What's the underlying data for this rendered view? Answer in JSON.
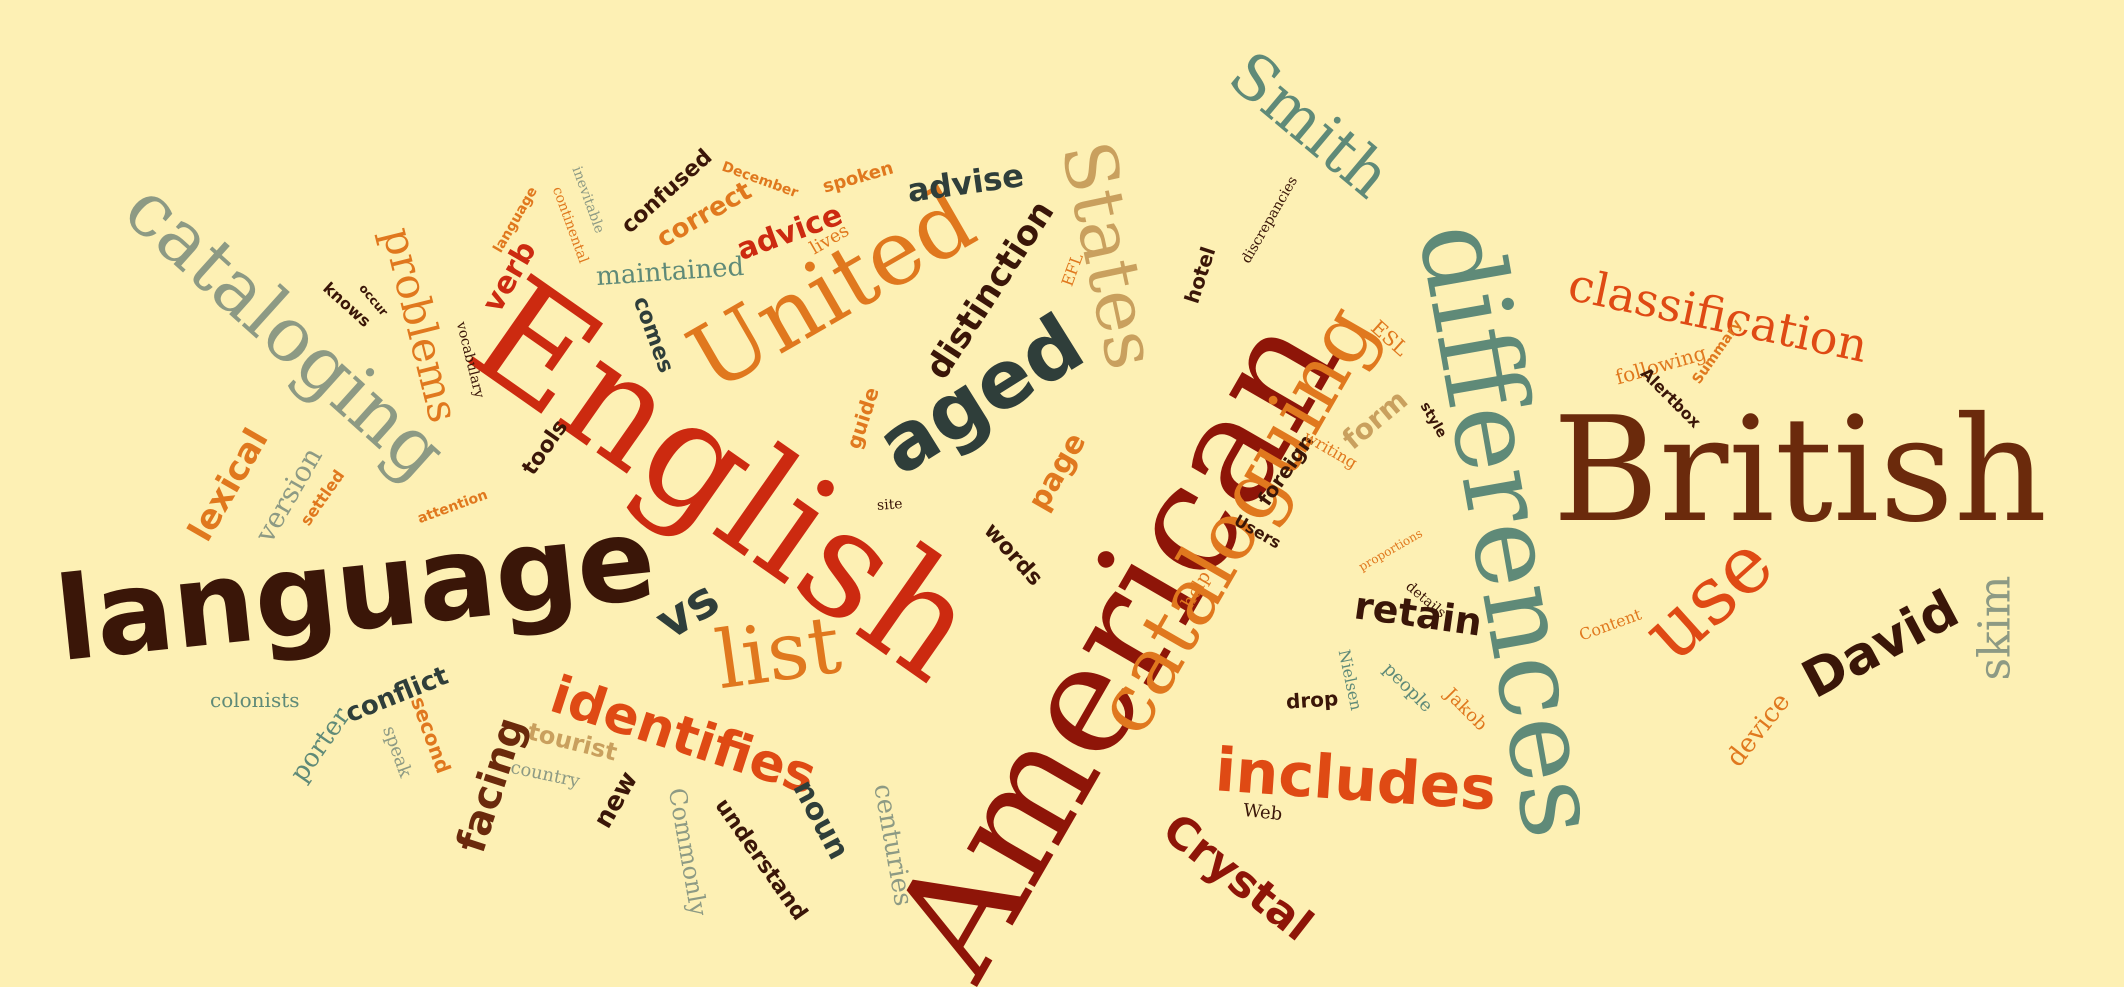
{
  "colors": {
    "background": "#fdf0b4",
    "dark_brown": "#3a1608",
    "brown": "#6b2a0c",
    "dark_red": "#8e1508",
    "red": "#cc2a10",
    "orange_red": "#df4a14",
    "orange": "#e0781e",
    "tan": "#c9a05e",
    "sage": "#8d9a84",
    "teal": "#5f8a78",
    "dark_slate": "#2f3e3a"
  },
  "words": [
    {
      "text": "American",
      "color": "dark_red",
      "style": "serif"
    },
    {
      "text": "English",
      "color": "red",
      "style": "serif"
    },
    {
      "text": "British",
      "color": "brown",
      "style": "serif"
    },
    {
      "text": "differences",
      "color": "teal",
      "style": "serif"
    },
    {
      "text": "language",
      "color": "dark_brown",
      "style": "sans"
    },
    {
      "text": "cataloging",
      "color": "sage",
      "style": "serif"
    },
    {
      "text": "cataloguing",
      "color": "orange",
      "style": "serif"
    },
    {
      "text": "United",
      "color": "orange",
      "style": "serif"
    },
    {
      "text": "States",
      "color": "tan",
      "style": "serif"
    },
    {
      "text": "aged",
      "color": "dark_slate",
      "style": "sans"
    },
    {
      "text": "list",
      "color": "orange",
      "style": "serif"
    },
    {
      "text": "Smith",
      "color": "teal",
      "style": "serif"
    },
    {
      "text": "classification",
      "color": "orange_red",
      "style": "serif"
    },
    {
      "text": "use",
      "color": "orange_red",
      "style": "serif"
    },
    {
      "text": "David",
      "color": "dark_brown",
      "style": "sans"
    },
    {
      "text": "includes",
      "color": "orange_red",
      "style": "sans"
    },
    {
      "text": "identifies",
      "color": "orange_red",
      "style": "sans"
    },
    {
      "text": "Crystal",
      "color": "dark_red",
      "style": "sans"
    },
    {
      "text": "problems",
      "color": "orange",
      "style": "serif"
    },
    {
      "text": "vs",
      "color": "dark_slate",
      "style": "sans"
    },
    {
      "text": "skim",
      "color": "sage",
      "style": "serif"
    },
    {
      "text": "retain",
      "color": "dark_brown",
      "style": "sans"
    },
    {
      "text": "facing",
      "color": "brown",
      "style": "sans"
    },
    {
      "text": "distinction",
      "color": "dark_brown",
      "style": "sans"
    },
    {
      "text": "lexical",
      "color": "orange",
      "style": "sans"
    },
    {
      "text": "version",
      "color": "sage",
      "style": "serif"
    },
    {
      "text": "advise",
      "color": "dark_slate",
      "style": "sans"
    },
    {
      "text": "advice",
      "color": "red",
      "style": "sans"
    },
    {
      "text": "maintained",
      "color": "teal",
      "style": "serif"
    },
    {
      "text": "correct",
      "color": "orange",
      "style": "sans"
    },
    {
      "text": "confused",
      "color": "dark_brown",
      "style": "sans"
    },
    {
      "text": "verb",
      "color": "red",
      "style": "sans"
    },
    {
      "text": "conflict",
      "color": "dark_slate",
      "style": "sans"
    },
    {
      "text": "page",
      "color": "orange",
      "style": "sans"
    },
    {
      "text": "form",
      "color": "tan",
      "style": "sans"
    },
    {
      "text": "noun",
      "color": "dark_slate",
      "style": "sans"
    },
    {
      "text": "new",
      "color": "dark_brown",
      "style": "sans"
    },
    {
      "text": "centuries",
      "color": "sage",
      "style": "serif"
    },
    {
      "text": "Commonly",
      "color": "sage",
      "style": "serif"
    },
    {
      "text": "understand",
      "color": "dark_brown",
      "style": "sans"
    },
    {
      "text": "tourist",
      "color": "tan",
      "style": "sans"
    },
    {
      "text": "country",
      "color": "sage",
      "style": "serif"
    },
    {
      "text": "second",
      "color": "orange",
      "style": "sans"
    },
    {
      "text": "speak",
      "color": "sage",
      "style": "serif"
    },
    {
      "text": "porter",
      "color": "teal",
      "style": "serif"
    },
    {
      "text": "colonists",
      "color": "teal",
      "style": "serif"
    },
    {
      "text": "device",
      "color": "orange",
      "style": "serif"
    },
    {
      "text": "following",
      "color": "orange",
      "style": "serif"
    },
    {
      "text": "Alertbox",
      "color": "dark_brown",
      "style": "sans"
    },
    {
      "text": "Summary",
      "color": "orange",
      "style": "sans"
    },
    {
      "text": "words",
      "color": "dark_brown",
      "style": "sans"
    },
    {
      "text": "comes",
      "color": "dark_slate",
      "style": "sans"
    },
    {
      "text": "guide",
      "color": "orange",
      "style": "sans"
    },
    {
      "text": "tools",
      "color": "dark_brown",
      "style": "sans"
    },
    {
      "text": "settled",
      "color": "orange",
      "style": "sans"
    },
    {
      "text": "attention",
      "color": "orange",
      "style": "sans"
    },
    {
      "text": "knows",
      "color": "dark_brown",
      "style": "sans"
    },
    {
      "text": "occur",
      "color": "dark_brown",
      "style": "sans"
    },
    {
      "text": "vocabulary",
      "color": "dark_brown",
      "style": "serif"
    },
    {
      "text": "language",
      "color": "orange",
      "style": "sans"
    },
    {
      "text": "continental",
      "color": "orange",
      "style": "serif"
    },
    {
      "text": "inevitable",
      "color": "sage",
      "style": "serif"
    },
    {
      "text": "December",
      "color": "orange",
      "style": "sans"
    },
    {
      "text": "spoken",
      "color": "orange",
      "style": "sans"
    },
    {
      "text": "lives",
      "color": "orange",
      "style": "serif"
    },
    {
      "text": "hotel",
      "color": "dark_brown",
      "style": "sans"
    },
    {
      "text": "foreign",
      "color": "dark_brown",
      "style": "sans"
    },
    {
      "text": "Users",
      "color": "dark_brown",
      "style": "sans"
    },
    {
      "text": "help",
      "color": "orange",
      "style": "serif"
    },
    {
      "text": "details",
      "color": "dark_brown",
      "style": "serif"
    },
    {
      "text": "people",
      "color": "teal",
      "style": "serif"
    },
    {
      "text": "drop",
      "color": "dark_brown",
      "style": "sans"
    },
    {
      "text": "Nielsen",
      "color": "teal",
      "style": "serif"
    },
    {
      "text": "Jakob",
      "color": "orange",
      "style": "serif"
    },
    {
      "text": "Web",
      "color": "dark_brown",
      "style": "serif"
    },
    {
      "text": "Content",
      "color": "orange",
      "style": "serif"
    },
    {
      "text": "EFL",
      "color": "orange",
      "style": "serif"
    },
    {
      "text": "ESL",
      "color": "orange",
      "style": "serif"
    },
    {
      "text": "writing",
      "color": "orange",
      "style": "serif"
    },
    {
      "text": "proportions",
      "color": "orange",
      "style": "serif"
    },
    {
      "text": "style",
      "color": "dark_brown",
      "style": "sans"
    },
    {
      "text": "discrepancies",
      "color": "dark_brown",
      "style": "serif"
    },
    {
      "text": "site",
      "color": "dark_brown",
      "style": "serif"
    }
  ]
}
